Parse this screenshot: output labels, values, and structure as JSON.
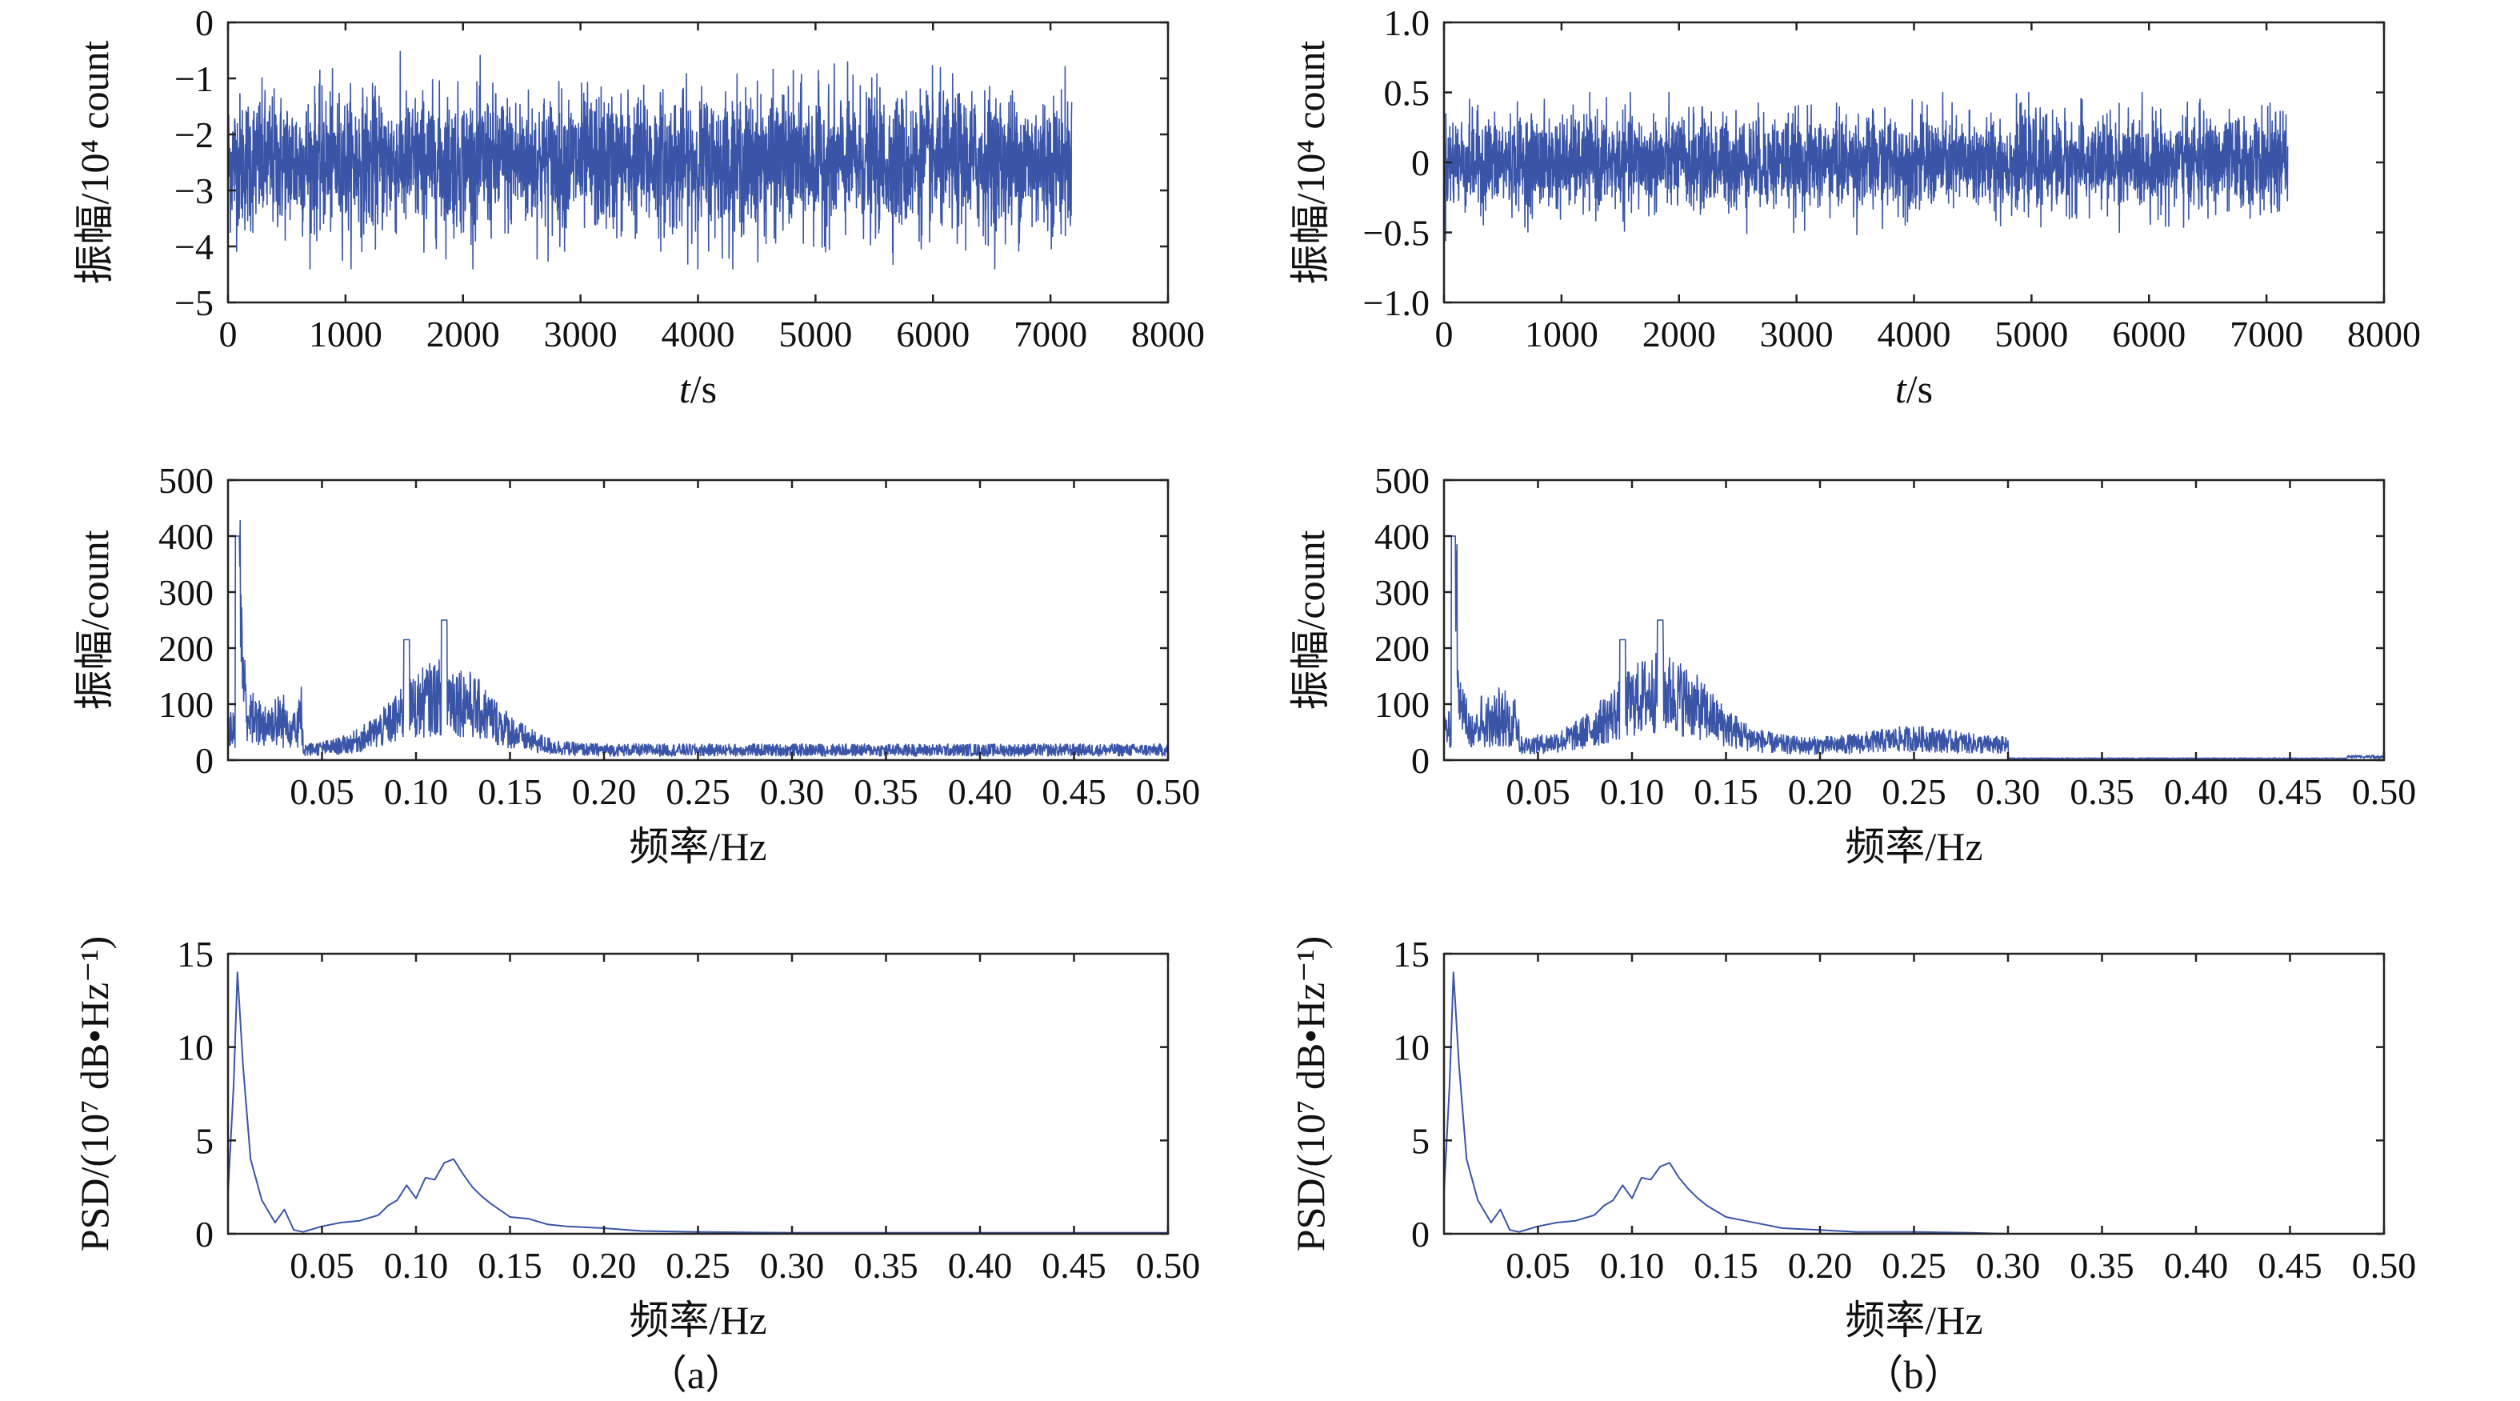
{
  "chart_data": [
    {
      "type": "line",
      "panel": "a-top",
      "ylabel": "振幅/10⁴ count",
      "xlabel": "t/s",
      "xlim": [
        0,
        8000
      ],
      "ylim": [
        -5,
        0
      ],
      "xticks": [
        "0",
        "1000",
        "2000",
        "3000",
        "4000",
        "5000",
        "6000",
        "7000",
        "8000"
      ],
      "yticks": [
        "0",
        "−1",
        "−2",
        "−3",
        "−4",
        "−5"
      ],
      "series": [
        {
          "kind": "noise",
          "x_range": [
            0,
            7180
          ],
          "mean": -2.5,
          "envelope": [
            -4.4,
            -0.5
          ],
          "typical_band": [
            -3.6,
            -1.4
          ]
        }
      ],
      "grid": false
    },
    {
      "type": "line",
      "panel": "b-top",
      "ylabel": "振幅/10⁴ count",
      "xlabel": "t/s",
      "xlim": [
        0,
        8000
      ],
      "ylim": [
        -1.0,
        1.0
      ],
      "xticks": [
        "0",
        "1000",
        "2000",
        "3000",
        "4000",
        "5000",
        "6000",
        "7000",
        "8000"
      ],
      "yticks": [
        "1.0",
        "0.5",
        "0",
        "−0.5",
        "−1.0"
      ],
      "series": [
        {
          "kind": "noise",
          "x_range": [
            0,
            7180
          ],
          "mean": 0.0,
          "envelope": [
            -0.65,
            0.5
          ],
          "typical_band": [
            -0.3,
            0.3
          ]
        }
      ],
      "grid": false
    },
    {
      "type": "line",
      "panel": "a-middle",
      "ylabel": "振幅/count",
      "xlabel": "频率/Hz",
      "xlim": [
        0.0,
        0.5
      ],
      "ylim": [
        0,
        500
      ],
      "xticks": [
        "0.05",
        "0.10",
        "0.15",
        "0.20",
        "0.25",
        "0.30",
        "0.35",
        "0.40",
        "0.45",
        "0.50"
      ],
      "yticks": [
        "500",
        "400",
        "300",
        "200",
        "100",
        "0"
      ],
      "series": [
        {
          "kind": "spectrum",
          "peak": [
            0.005,
            400
          ],
          "secondary": [
            0.095,
            215
          ],
          "hump_center": 0.115,
          "hump_peak": 250,
          "tail": 12,
          "cutoff": null
        }
      ],
      "grid": false
    },
    {
      "type": "line",
      "panel": "b-middle",
      "ylabel": "振幅/count",
      "xlabel": "频率/Hz",
      "xlim": [
        0.0,
        0.5
      ],
      "ylim": [
        0,
        500
      ],
      "xticks": [
        "0.05",
        "0.10",
        "0.15",
        "0.20",
        "0.25",
        "0.30",
        "0.35",
        "0.40",
        "0.45",
        "0.50"
      ],
      "yticks": [
        "500",
        "400",
        "300",
        "200",
        "100",
        "0"
      ],
      "series": [
        {
          "kind": "spectrum",
          "peak": [
            0.005,
            400
          ],
          "secondary": [
            0.095,
            215
          ],
          "hump_center": 0.115,
          "hump_peak": 250,
          "tail": 20,
          "cutoff": 0.3
        }
      ],
      "grid": false
    },
    {
      "type": "line",
      "panel": "a-bottom",
      "ylabel": "PSD/(10⁷ dB•Hz⁻¹)",
      "xlabel": "频率/Hz",
      "xlim": [
        0.0,
        0.5
      ],
      "ylim": [
        0,
        15
      ],
      "xticks": [
        "0.05",
        "0.10",
        "0.15",
        "0.20",
        "0.25",
        "0.30",
        "0.35",
        "0.40",
        "0.45",
        "0.50"
      ],
      "yticks": [
        "15",
        "10",
        "5",
        "0"
      ],
      "series": [
        {
          "kind": "psd",
          "x": [
            0.0,
            0.003,
            0.005,
            0.008,
            0.012,
            0.018,
            0.025,
            0.03,
            0.035,
            0.04,
            0.05,
            0.06,
            0.07,
            0.08,
            0.085,
            0.09,
            0.095,
            0.1,
            0.105,
            0.11,
            0.115,
            0.12,
            0.125,
            0.13,
            0.135,
            0.14,
            0.15,
            0.16,
            0.17,
            0.18,
            0.2,
            0.22,
            0.25,
            0.3,
            0.35,
            0.4,
            0.45,
            0.5
          ],
          "y": [
            2.2,
            8.0,
            14.0,
            9.0,
            4.0,
            1.8,
            0.6,
            1.3,
            0.2,
            0.1,
            0.4,
            0.6,
            0.7,
            1.0,
            1.5,
            1.8,
            2.6,
            1.9,
            3.0,
            2.9,
            3.8,
            4.0,
            3.2,
            2.5,
            2.0,
            1.6,
            0.9,
            0.8,
            0.5,
            0.4,
            0.3,
            0.15,
            0.1,
            0.05,
            0.05,
            0.05,
            0.05,
            0.05
          ]
        }
      ],
      "grid": false
    },
    {
      "type": "line",
      "panel": "b-bottom",
      "ylabel": "PSD/(10⁷ dB•Hz⁻¹)",
      "xlabel": "频率/Hz",
      "xlim": [
        0.0,
        0.5
      ],
      "ylim": [
        0,
        15
      ],
      "xticks": [
        "0.05",
        "0.10",
        "0.15",
        "0.20",
        "0.25",
        "0.30",
        "0.35",
        "0.40",
        "0.45",
        "0.50"
      ],
      "yticks": [
        "15",
        "10",
        "5",
        "0"
      ],
      "series": [
        {
          "kind": "psd",
          "x": [
            0.0,
            0.003,
            0.005,
            0.008,
            0.012,
            0.018,
            0.025,
            0.03,
            0.035,
            0.04,
            0.05,
            0.06,
            0.07,
            0.08,
            0.085,
            0.09,
            0.095,
            0.1,
            0.105,
            0.11,
            0.115,
            0.12,
            0.125,
            0.13,
            0.135,
            0.14,
            0.15,
            0.16,
            0.17,
            0.18,
            0.2,
            0.22,
            0.25,
            0.28,
            0.3,
            0.35,
            0.4,
            0.45,
            0.5
          ],
          "y": [
            2.2,
            8.0,
            14.0,
            9.0,
            4.0,
            1.8,
            0.6,
            1.3,
            0.2,
            0.1,
            0.4,
            0.6,
            0.7,
            1.0,
            1.5,
            1.8,
            2.6,
            1.9,
            3.0,
            2.9,
            3.6,
            3.8,
            3.0,
            2.4,
            1.9,
            1.5,
            0.9,
            0.7,
            0.5,
            0.3,
            0.2,
            0.1,
            0.1,
            0.05,
            0.0,
            0.0,
            0.0,
            0.0,
            0.0
          ]
        }
      ],
      "grid": false
    }
  ],
  "captions": {
    "a": "（a）",
    "b": "（b）"
  },
  "colors": {
    "trace": "#3a55a8",
    "axes": "#222222"
  }
}
